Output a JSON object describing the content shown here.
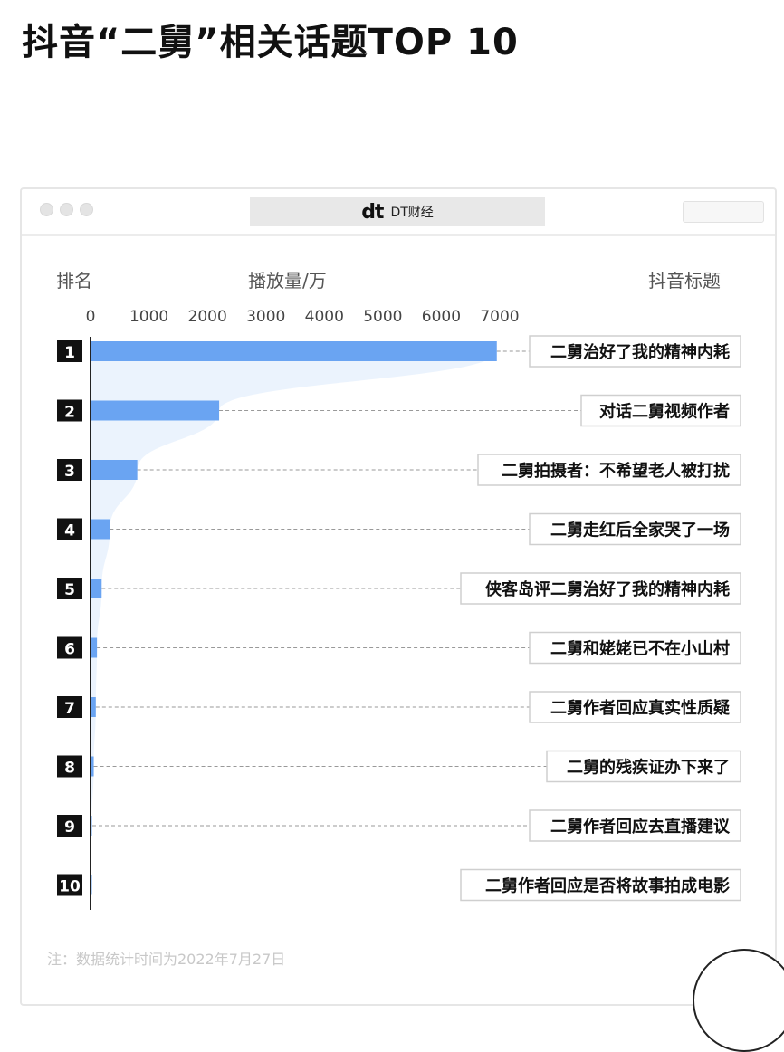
{
  "title": "抖音“二舅”相关话题TOP 10",
  "window": {
    "brand_logo": "dt",
    "brand_name": "DT财经"
  },
  "headers": {
    "rank": "排名",
    "plays": "播放量/万",
    "topic": "抖音标题"
  },
  "footnote": "注：数据统计时间为2022年7月27日",
  "colors": {
    "bar": "#6aa4f2",
    "fill": "#e6f0fd",
    "rank_box": "#111111"
  },
  "chart_data": {
    "type": "bar",
    "orientation": "horizontal",
    "xlim": [
      0,
      7000
    ],
    "x_ticks": [
      "0",
      "1000",
      "2000",
      "3000",
      "4000",
      "5000",
      "6000",
      "7000"
    ],
    "ranks": [
      "1",
      "2",
      "3",
      "4",
      "5",
      "6",
      "7",
      "8",
      "9",
      "10"
    ],
    "categories": [
      "二舅治好了我的精神内耗",
      "对话二舅视频作者",
      "二舅拍摄者：不希望老人被打扰",
      "二舅走红后全家哭了一场",
      "侠客岛评二舅治好了我的精神内耗",
      "二舅和姥姥已不在小山村",
      "二舅作者回应真实性质疑",
      "二舅的残疾证办下来了",
      "二舅作者回应去直播建议",
      "二舅作者回应是否将故事拍成电影"
    ],
    "values": [
      6950,
      2200,
      800,
      330,
      190,
      110,
      90,
      55,
      15,
      10
    ]
  }
}
